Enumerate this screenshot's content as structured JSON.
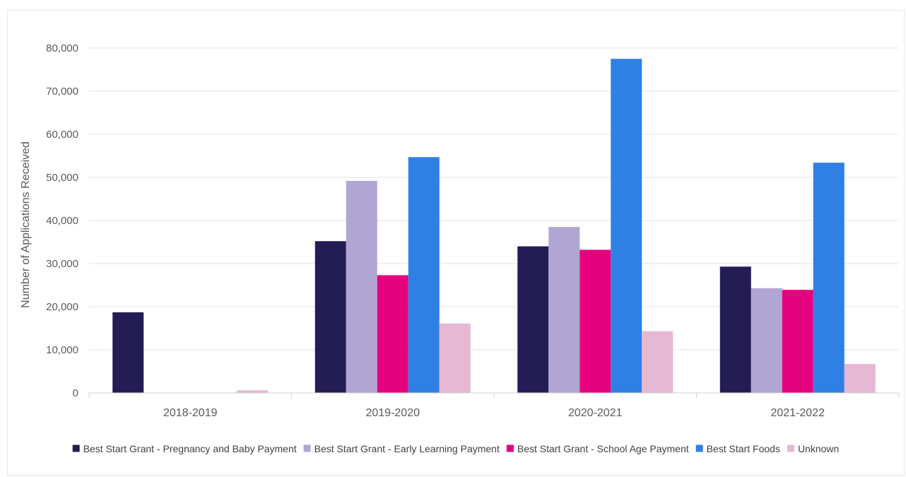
{
  "chart_data": {
    "type": "bar",
    "title": "",
    "xlabel": "",
    "ylabel": "Number  of Applications Received",
    "ylim": [
      0,
      80000
    ],
    "yticks": [
      0,
      10000,
      20000,
      30000,
      40000,
      50000,
      60000,
      70000,
      80000
    ],
    "ytick_labels": [
      "0",
      "10,000",
      "20,000",
      "30,000",
      "40,000",
      "50,000",
      "60,000",
      "70,000",
      "80,000"
    ],
    "grid": true,
    "legend_position": "bottom",
    "categories": [
      "2018-2019",
      "2019-2020",
      "2020-2021",
      "2021-2022"
    ],
    "series": [
      {
        "name": "Best Start Grant - Pregnancy and Baby Payment",
        "color": "#241c55",
        "values": [
          18700,
          35200,
          34000,
          29300
        ]
      },
      {
        "name": "Best Start Grant - Early Learning Payment",
        "color": "#b1a6d3",
        "values": [
          0,
          49200,
          38500,
          24300
        ]
      },
      {
        "name": "Best Start Grant - School Age Payment",
        "color": "#e5007e",
        "values": [
          0,
          27300,
          33200,
          23900
        ]
      },
      {
        "name": "Best Start Foods",
        "color": "#2f80e4",
        "values": [
          0,
          54700,
          77500,
          53400
        ]
      },
      {
        "name": "Unknown",
        "color": "#e6b8d4",
        "values": [
          600,
          16100,
          14300,
          6700
        ]
      }
    ]
  }
}
